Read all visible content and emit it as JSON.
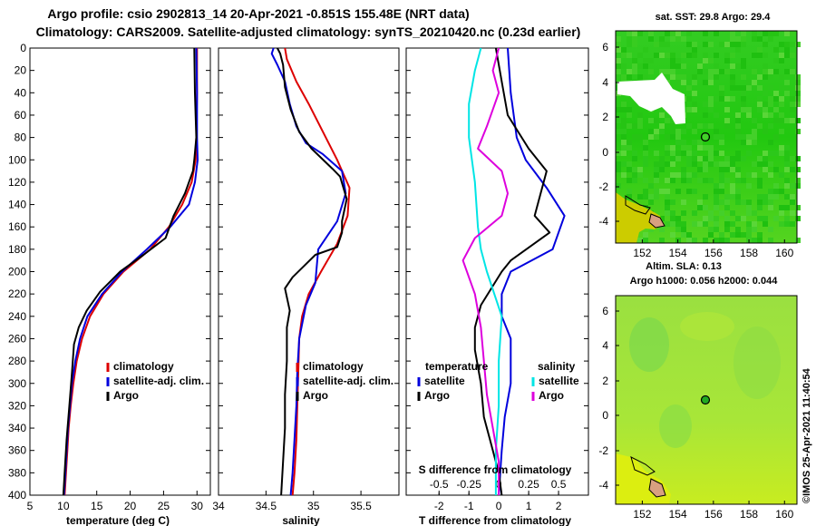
{
  "header": {
    "line1": "Argo profile: csio 2902813_14 20-Apr-2021 -0.851S 155.48E (NRT data)",
    "line2": "Climatology: CARS2009. Satellite-adjusted climatology: synTS_20210420.nc (0.23d earlier)"
  },
  "colors": {
    "climatology": "#dd0000",
    "satellite": "#0000dd",
    "argo": "#000000",
    "sat_salinity": "#00e5e5",
    "clim_salinity_diff": "#dd00dd"
  },
  "chart_data": [
    {
      "type": "line",
      "name": "temperature",
      "xlabel": "temperature (deg C)",
      "xlim": [
        5,
        32
      ],
      "xticks": [
        "5",
        "10",
        "15",
        "20",
        "25",
        "30"
      ],
      "xtick_values": [
        5,
        10,
        15,
        20,
        25,
        30
      ],
      "ylim": [
        0,
        400
      ],
      "yticks": [
        "0",
        "20",
        "40",
        "60",
        "80",
        "100",
        "120",
        "140",
        "160",
        "180",
        "200",
        "220",
        "240",
        "260",
        "280",
        "300",
        "320",
        "340",
        "360",
        "380",
        "400"
      ],
      "legend": [
        "climatology",
        "satellite-adj. clim.",
        "Argo"
      ],
      "series": [
        {
          "name": "climatology",
          "color": "#dd0000",
          "points": [
            [
              30.0,
              0
            ],
            [
              30.0,
              40
            ],
            [
              29.9,
              80
            ],
            [
              29.8,
              100
            ],
            [
              29.2,
              120
            ],
            [
              27.8,
              140
            ],
            [
              25.8,
              160
            ],
            [
              23.0,
              180
            ],
            [
              19.0,
              200
            ],
            [
              16.0,
              220
            ],
            [
              14.0,
              240
            ],
            [
              12.8,
              260
            ],
            [
              12.0,
              280
            ],
            [
              11.5,
              300
            ],
            [
              11.1,
              320
            ],
            [
              10.8,
              340
            ],
            [
              10.6,
              360
            ],
            [
              10.4,
              380
            ],
            [
              10.2,
              400
            ]
          ]
        },
        {
          "name": "satellite-adj. clim.",
          "color": "#0000dd",
          "points": [
            [
              29.9,
              0
            ],
            [
              30.0,
              40
            ],
            [
              30.0,
              80
            ],
            [
              30.1,
              100
            ],
            [
              29.7,
              120
            ],
            [
              28.8,
              140
            ],
            [
              26.0,
              160
            ],
            [
              22.5,
              180
            ],
            [
              18.8,
              200
            ],
            [
              15.8,
              220
            ],
            [
              13.6,
              240
            ],
            [
              12.5,
              260
            ],
            [
              11.8,
              280
            ],
            [
              11.3,
              300
            ],
            [
              11.0,
              320
            ],
            [
              10.7,
              340
            ],
            [
              10.5,
              360
            ],
            [
              10.3,
              380
            ],
            [
              10.1,
              400
            ]
          ]
        },
        {
          "name": "Argo",
          "color": "#000000",
          "points": [
            [
              29.6,
              0
            ],
            [
              29.7,
              40
            ],
            [
              29.9,
              80
            ],
            [
              29.6,
              100
            ],
            [
              29.4,
              110
            ],
            [
              28.2,
              130
            ],
            [
              26.5,
              150
            ],
            [
              25.3,
              170
            ],
            [
              22.0,
              185
            ],
            [
              18.5,
              200
            ],
            [
              15.5,
              218
            ],
            [
              13.5,
              235
            ],
            [
              12.3,
              250
            ],
            [
              11.6,
              265
            ],
            [
              11.3,
              290
            ],
            [
              10.9,
              320
            ],
            [
              10.5,
              350
            ],
            [
              10.2,
              380
            ],
            [
              10.0,
              400
            ]
          ]
        }
      ]
    },
    {
      "type": "line",
      "name": "salinity",
      "xlabel": "salinity",
      "xlim": [
        34.0,
        35.9
      ],
      "xticks": [
        "34",
        "34.5",
        "35",
        "35.5"
      ],
      "xtick_values": [
        34.0,
        34.5,
        35.0,
        35.5
      ],
      "ylim": [
        0,
        400
      ],
      "legend": [
        "climatology",
        "satellite-adj. clim.",
        "Argo"
      ],
      "series": [
        {
          "name": "climatology",
          "color": "#dd0000",
          "points": [
            [
              34.7,
              0
            ],
            [
              34.72,
              10
            ],
            [
              34.82,
              30
            ],
            [
              34.95,
              50
            ],
            [
              35.1,
              75
            ],
            [
              35.25,
              100
            ],
            [
              35.38,
              125
            ],
            [
              35.36,
              150
            ],
            [
              35.25,
              175
            ],
            [
              35.08,
              200
            ],
            [
              34.95,
              220
            ],
            [
              34.88,
              240
            ],
            [
              34.85,
              260
            ],
            [
              34.84,
              290
            ],
            [
              34.83,
              320
            ],
            [
              34.82,
              350
            ],
            [
              34.8,
              380
            ],
            [
              34.78,
              400
            ]
          ]
        },
        {
          "name": "satellite-adj. clim.",
          "color": "#0000dd",
          "points": [
            [
              34.58,
              0
            ],
            [
              34.56,
              5
            ],
            [
              34.62,
              15
            ],
            [
              34.7,
              30
            ],
            [
              34.75,
              50
            ],
            [
              34.82,
              70
            ],
            [
              34.92,
              85
            ],
            [
              35.1,
              95
            ],
            [
              35.3,
              110
            ],
            [
              35.34,
              130
            ],
            [
              35.25,
              155
            ],
            [
              35.05,
              180
            ],
            [
              35.02,
              210
            ],
            [
              34.92,
              230
            ],
            [
              34.85,
              260
            ],
            [
              34.83,
              290
            ],
            [
              34.82,
              320
            ],
            [
              34.8,
              350
            ],
            [
              34.78,
              380
            ],
            [
              34.76,
              400
            ]
          ]
        },
        {
          "name": "Argo",
          "color": "#000000",
          "points": [
            [
              34.62,
              0
            ],
            [
              34.65,
              5
            ],
            [
              34.68,
              15
            ],
            [
              34.7,
              35
            ],
            [
              34.76,
              55
            ],
            [
              34.85,
              75
            ],
            [
              34.98,
              90
            ],
            [
              35.2,
              108
            ],
            [
              35.28,
              115
            ],
            [
              35.35,
              135
            ],
            [
              35.3,
              155
            ],
            [
              35.3,
              165
            ],
            [
              35.25,
              178
            ],
            [
              35.02,
              185
            ],
            [
              34.9,
              195
            ],
            [
              34.78,
              205
            ],
            [
              34.7,
              215
            ],
            [
              34.75,
              235
            ],
            [
              34.72,
              250
            ],
            [
              34.72,
              280
            ],
            [
              34.7,
              310
            ],
            [
              34.7,
              340
            ],
            [
              34.68,
              370
            ],
            [
              34.66,
              400
            ]
          ]
        }
      ]
    },
    {
      "type": "line",
      "name": "difference",
      "xlabel": "T difference from climatology",
      "xlabel2": "S difference from climatology",
      "xlim": [
        -3.1,
        3.0
      ],
      "xticks": [
        "-2",
        "-1",
        "0",
        "1",
        "2"
      ],
      "xtick_values": [
        -2,
        -1,
        0,
        1,
        2
      ],
      "xticks2": [
        "-0.5",
        "-0.25",
        "0",
        "0.25",
        "0.5"
      ],
      "xtick2_values": [
        -0.5,
        -0.25,
        0,
        0.25,
        0.5
      ],
      "s_scale_note": "salinity differences plotted at 4x scale on the T axis",
      "ylim": [
        0,
        400
      ],
      "legend_left_title": "temperature",
      "legend_right_title": "salinity",
      "legend": [
        "satellite",
        "Argo",
        "satellite",
        "Argo"
      ],
      "series": [
        {
          "name": "T satellite",
          "color": "#0000dd",
          "points": [
            [
              0.3,
              0
            ],
            [
              0.4,
              40
            ],
            [
              0.6,
              80
            ],
            [
              0.9,
              100
            ],
            [
              1.6,
              125
            ],
            [
              2.2,
              150
            ],
            [
              1.8,
              180
            ],
            [
              0.4,
              200
            ],
            [
              0.1,
              220
            ],
            [
              0.1,
              240
            ],
            [
              0.4,
              260
            ],
            [
              0.4,
              300
            ],
            [
              0.2,
              330
            ],
            [
              0.1,
              360
            ],
            [
              0.0,
              400
            ]
          ]
        },
        {
          "name": "T Argo",
          "color": "#000000",
          "points": [
            [
              -0.1,
              0
            ],
            [
              0.1,
              30
            ],
            [
              0.3,
              60
            ],
            [
              1.0,
              90
            ],
            [
              1.6,
              110
            ],
            [
              1.4,
              130
            ],
            [
              1.2,
              150
            ],
            [
              1.7,
              165
            ],
            [
              0.4,
              190
            ],
            [
              0.1,
              200
            ],
            [
              -0.6,
              230
            ],
            [
              -0.8,
              250
            ],
            [
              -0.8,
              270
            ],
            [
              -0.6,
              300
            ],
            [
              -0.5,
              330
            ],
            [
              -0.3,
              350
            ],
            [
              0.0,
              380
            ],
            [
              0.1,
              400
            ]
          ]
        },
        {
          "name": "S satellite",
          "color": "#00e5e5",
          "points": [
            [
              -0.6,
              0
            ],
            [
              -0.8,
              20
            ],
            [
              -1.0,
              50
            ],
            [
              -1.0,
              80
            ],
            [
              -0.8,
              120
            ],
            [
              -0.7,
              160
            ],
            [
              -0.6,
              180
            ],
            [
              -0.4,
              200
            ],
            [
              0.1,
              240
            ],
            [
              0.0,
              280
            ],
            [
              0.0,
              320
            ],
            [
              -0.1,
              360
            ],
            [
              -0.1,
              400
            ]
          ]
        },
        {
          "name": "S Argo",
          "color": "#dd00dd",
          "points": [
            [
              0.0,
              0
            ],
            [
              -0.2,
              20
            ],
            [
              0.0,
              40
            ],
            [
              -0.4,
              70
            ],
            [
              -0.7,
              90
            ],
            [
              0.1,
              110
            ],
            [
              0.3,
              130
            ],
            [
              0.1,
              150
            ],
            [
              -0.8,
              170
            ],
            [
              -1.2,
              190
            ],
            [
              -0.8,
              220
            ],
            [
              -0.6,
              250
            ],
            [
              -0.5,
              280
            ],
            [
              -0.4,
              310
            ],
            [
              -0.2,
              340
            ],
            [
              0.0,
              370
            ],
            [
              0.0,
              400
            ]
          ]
        }
      ]
    }
  ],
  "maps": {
    "sst": {
      "title": "sat. SST: 29.8 Argo: 29.4",
      "yticks": [
        "6",
        "4",
        "2",
        "0",
        "-2",
        "-4"
      ],
      "xticks": [
        "152",
        "154",
        "156",
        "158",
        "160"
      ],
      "argo_position": "near 155.5E, 0.9N"
    },
    "sla": {
      "title1": "Altim. SLA: 0.13",
      "title2": "Argo h1000: 0.056 h2000: 0.044",
      "yticks": [
        "6",
        "4",
        "2",
        "0",
        "-2",
        "-4"
      ],
      "xticks": [
        "152",
        "154",
        "156",
        "158",
        "160"
      ],
      "argo_position": "near 155.5E, 0.9N"
    }
  },
  "footer": {
    "credit": "©IMOS 25-Apr-2021 11:40:54"
  }
}
